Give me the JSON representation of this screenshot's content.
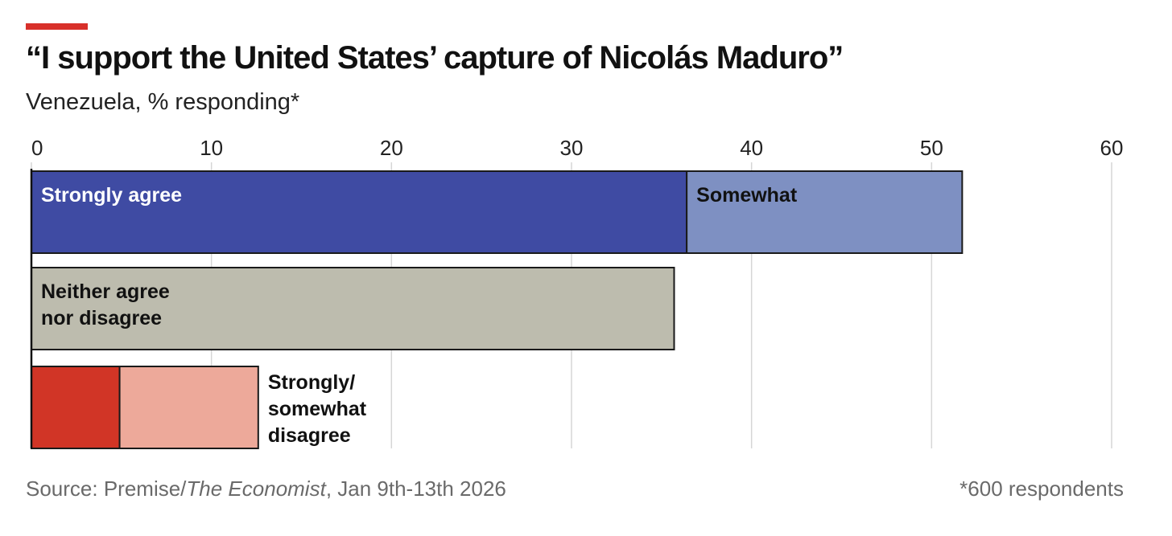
{
  "header": {
    "title": "“I support the United States’ capture of Nicolás Maduro”",
    "subtitle": "Venezuela, % responding*",
    "accent_color": "#d8302a"
  },
  "footer": {
    "source_prefix": "Source: Premise/",
    "source_italic": "The Economist",
    "source_suffix": ", Jan 9th-13th 2026",
    "footnote": "*600 respondents"
  },
  "chart_data": {
    "type": "bar",
    "orientation": "horizontal",
    "stacked": true,
    "xlim": [
      0,
      60
    ],
    "xticks": [
      0,
      10,
      20,
      30,
      40,
      50,
      60
    ],
    "x_axis_position": "top",
    "grid": true,
    "rows": [
      {
        "label": "",
        "segments": [
          {
            "name": "Strongly agree",
            "value": 36.4,
            "color": "#3f4ba3",
            "label_color": "#ffffff",
            "label_inside": true
          },
          {
            "name": "Somewhat",
            "value": 15.3,
            "color": "#7e90c2",
            "label_color": "#111111",
            "label_inside": true
          }
        ]
      },
      {
        "label": "",
        "segments": [
          {
            "name": "Neither agree\nnor disagree",
            "value": 35.7,
            "color": "#bdbcae",
            "label_color": "#111111",
            "label_inside": true
          }
        ]
      },
      {
        "label": "Strongly/\nsomewhat\ndisagree",
        "segments": [
          {
            "name": "Strongly disagree",
            "value": 4.9,
            "color": "#d13526",
            "label_color": "#111111",
            "label_inside": false
          },
          {
            "name": "Somewhat disagree",
            "value": 7.7,
            "color": "#eda99a",
            "label_color": "#111111",
            "label_inside": false
          }
        ]
      }
    ]
  }
}
